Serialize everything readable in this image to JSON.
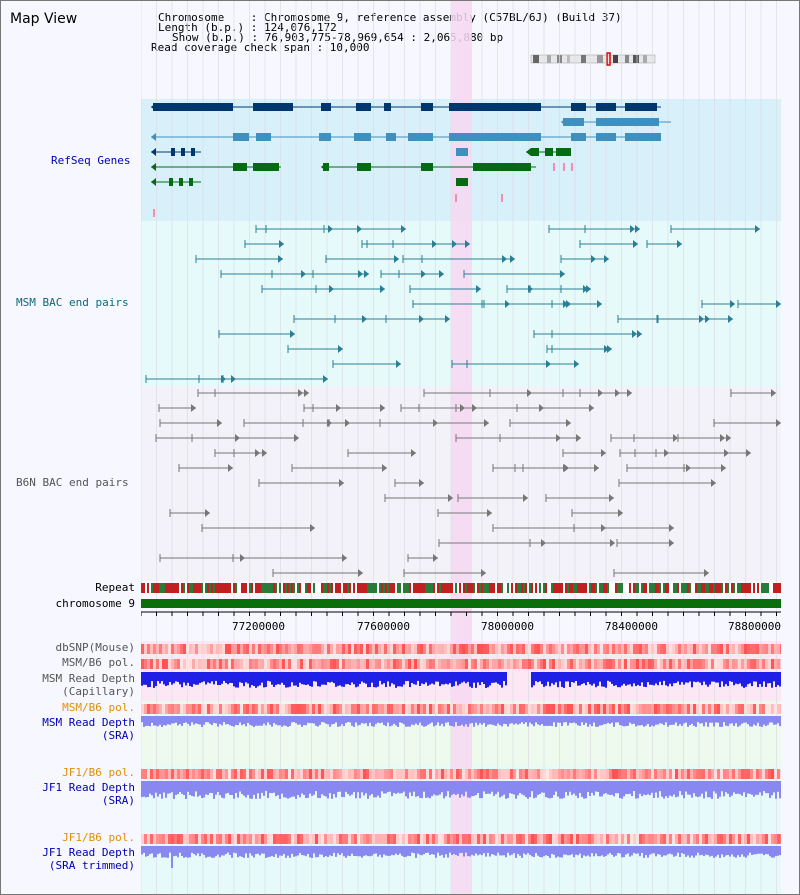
{
  "view_title": "Map View",
  "info": {
    "chromosome": "Chromosome    : Chromosome 9, reference assembly (C57BL/6J) (Build 37)",
    "length": "Length (b.p.) : 124,076,172",
    "show": "Show (b.p.) : 76,903,775-78,969,654 : 2,065,880 bp",
    "coverage": "Read coverage check span : 10,000"
  },
  "tracks": {
    "refseq": "RefSeq Genes",
    "msm_bac": "MSM BAC end pairs",
    "b6n_bac": "B6N BAC end pairs",
    "repeat": "Repeat",
    "chromosome": "chromosome 9",
    "dbsnp": "dbSNP(Mouse)",
    "msm_pol": "MSM/B6 pol.",
    "msm_depth_cap_1": "MSM Read Depth",
    "msm_depth_cap_2": "(Capillary)",
    "msm_pol_sra": "MSM/B6 pol.",
    "msm_depth_sra_1": "MSM Read Depth",
    "msm_depth_sra_2": "(SRA)",
    "jf1_pol": "JF1/B6 pol.",
    "jf1_depth_1": "JF1 Read Depth",
    "jf1_depth_2": "(SRA)",
    "jf1_pol_trim": "JF1/B6 pol.",
    "jf1_depth_trim_1": "JF1 Read Depth",
    "jf1_depth_trim_2": "(SRA trimmed)"
  },
  "axis_ticks": [
    "77200000",
    "77600000",
    "78000000",
    "78400000",
    "78800000"
  ],
  "colors": {
    "refseq_bg": "#d8f0fa",
    "msm_bg": "#e6fafa",
    "b6n_bg": "#f2f2f8",
    "highlight": "#f7d8f2",
    "refseq_dark": "#00386e",
    "refseq_mid": "#3f8fbf",
    "refseq_green": "#046b12",
    "msm_bac": "#2b7f94",
    "b6n_bac": "#777777",
    "chromosome": "#0a6e0a",
    "snp": "#ff6a6a",
    "depth_msm": "#1f1fe6",
    "depth_sra": "#8888f0",
    "label_blue": "#0000b0",
    "label_teal": "#116677",
    "label_gray": "#555555",
    "label_orange": "#e09000"
  }
}
